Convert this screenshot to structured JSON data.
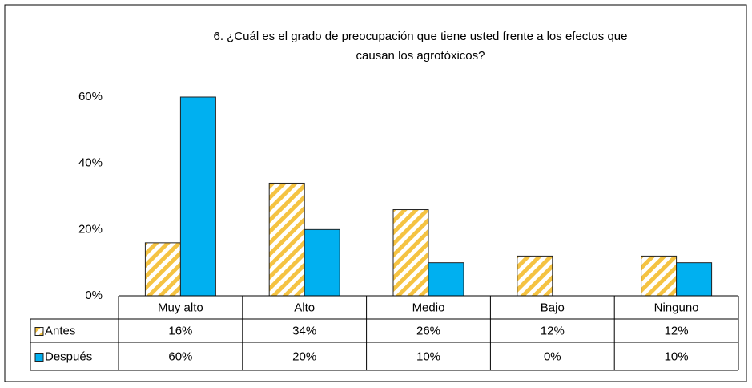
{
  "chart_data": {
    "type": "bar",
    "title": [
      "6. ¿Cuál es el grado de preocupación que tiene usted frente a los efectos que",
      "causan los agrotóxicos?"
    ],
    "categories": [
      "Muy alto",
      "Alto",
      "Medio",
      "Bajo",
      "Ninguno"
    ],
    "series": [
      {
        "name": "Antes",
        "color": "#f5c342",
        "values": [
          16,
          34,
          26,
          12,
          12
        ],
        "value_labels": [
          "16%",
          "34%",
          "26%",
          "12%",
          "12%"
        ]
      },
      {
        "name": "Después",
        "color": "#00b0f0",
        "values": [
          60,
          20,
          10,
          0,
          10
        ],
        "value_labels": [
          "60%",
          "20%",
          "10%",
          "0%",
          "10%"
        ]
      }
    ],
    "ylim": [
      0,
      60
    ],
    "yticks": [
      {
        "value": 0,
        "label": "0%"
      },
      {
        "value": 20,
        "label": "20%"
      },
      {
        "value": 40,
        "label": "40%"
      },
      {
        "value": 60,
        "label": "60%"
      }
    ],
    "grid": false
  }
}
